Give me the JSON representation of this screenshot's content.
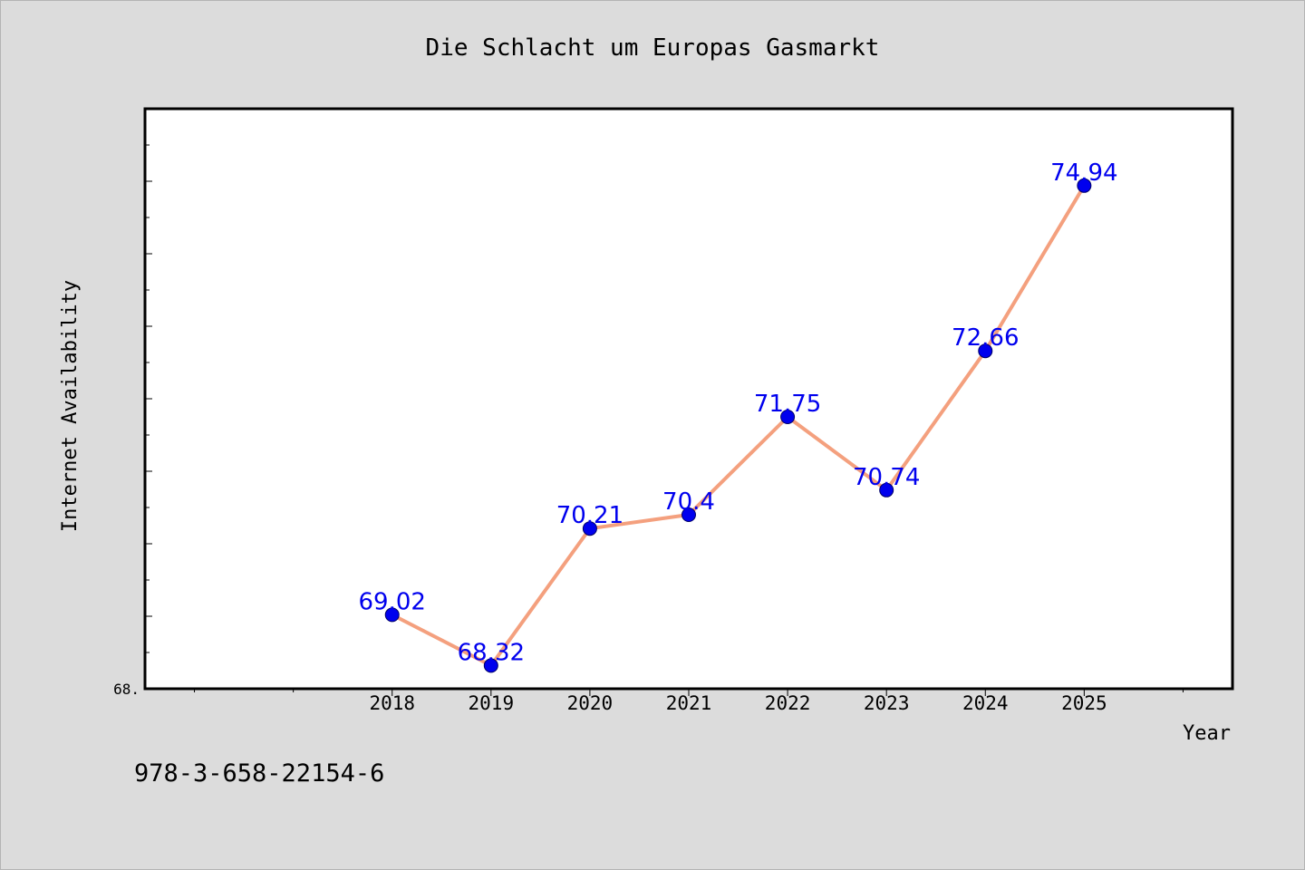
{
  "chart_data": {
    "type": "line",
    "title": "Die Schlacht um Europas Gasmarkt",
    "xlabel": "Year",
    "ylabel": "Internet Availability",
    "x": [
      2018,
      2019,
      2020,
      2021,
      2022,
      2023,
      2024,
      2025
    ],
    "categories": [
      "2018",
      "2019",
      "2020",
      "2021",
      "2022",
      "2023",
      "2024",
      "2025"
    ],
    "series": [
      {
        "values": [
          69.02,
          68.32,
          70.21,
          70.4,
          71.75,
          70.74,
          72.66,
          74.94
        ],
        "labels": [
          "69.02",
          "68.32",
          "70.21",
          "70.4",
          "71.75",
          "70.74",
          "72.66",
          "74.94"
        ]
      }
    ],
    "xlim": [
      2015.5,
      2026.5
    ],
    "ylim": [
      68.0,
      76.0
    ],
    "y_tick_label": "68.",
    "grid": false,
    "line_color": "#f4a07e",
    "marker_color": "#0000ee",
    "label_color": "#0000ee"
  },
  "footer": {
    "isbn": "978-3-658-22154-6"
  }
}
